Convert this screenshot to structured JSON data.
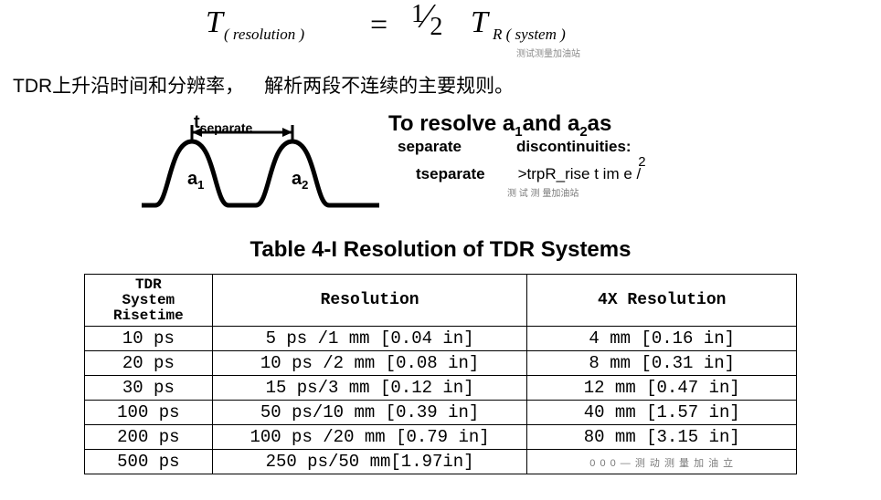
{
  "formula": {
    "T1": "T",
    "sub1": "( resolution  )",
    "eq": "=",
    "half_num": "1",
    "half_den": "2",
    "T2": "T",
    "sub2": "R ( system  )",
    "watermark": "测试测量加油站"
  },
  "cn_line": {
    "part1": "TDR上升沿时间和分辨率，",
    "part2": "解析两段不连续的主要规则。"
  },
  "diagram": {
    "tsep_t": "t",
    "tsep_sub": "separate",
    "a1": "a",
    "a1_sub": "1",
    "a2": "a",
    "a2_sub": "2",
    "stroke_color": "#000000",
    "stroke_width": 5
  },
  "caption": {
    "line1_pre": "To resolve a",
    "line1_sub1": "1",
    "line1_mid": "and   a",
    "line1_sub2": "2",
    "line1_post": "as",
    "line2_a": "separate",
    "line2_b": "discontinuities:",
    "line3_lhs": "tseparate",
    "line3_rhs": ">trpR_rise t  im  e   /",
    "line3_rhs_two": "2",
    "watermark": "测 试 测 量加油站"
  },
  "table": {
    "title": "Table 4-I   Resolution of TDR Systems",
    "headers": {
      "risetime": "TDR\nSystem\nRisetime",
      "resolution": "Resolution",
      "fourx": "4X Resolution"
    },
    "rows": [
      {
        "rt": "10 ps",
        "res": "5 ps /1 mm  [0.04 in]",
        "fx": "4 mm  [0.16  in]"
      },
      {
        "rt": "20 ps",
        "res": "10 ps /2 mm  [0.08 in]",
        "fx": "8 mm  [0.31  in]"
      },
      {
        "rt": "30 ps",
        "res": "15 ps/3 mm  [0.12 in]",
        "fx": "12 mm  [0.47  in]"
      },
      {
        "rt": "100 ps",
        "res": "50 ps/10 mm  [0.39 in]",
        "fx": "40 mm  [1.57  in]"
      },
      {
        "rt": "200 ps",
        "res": "100 ps /20 mm [0.79 in]",
        "fx": "80 mm  [3.15  in]"
      },
      {
        "rt": "500 ps",
        "res": "250   ps/50    mm[1.97in]",
        "fx": "__WM__"
      }
    ],
    "last_row_wm": "0 0 0        — 测 动 测 量 加 油 立"
  }
}
